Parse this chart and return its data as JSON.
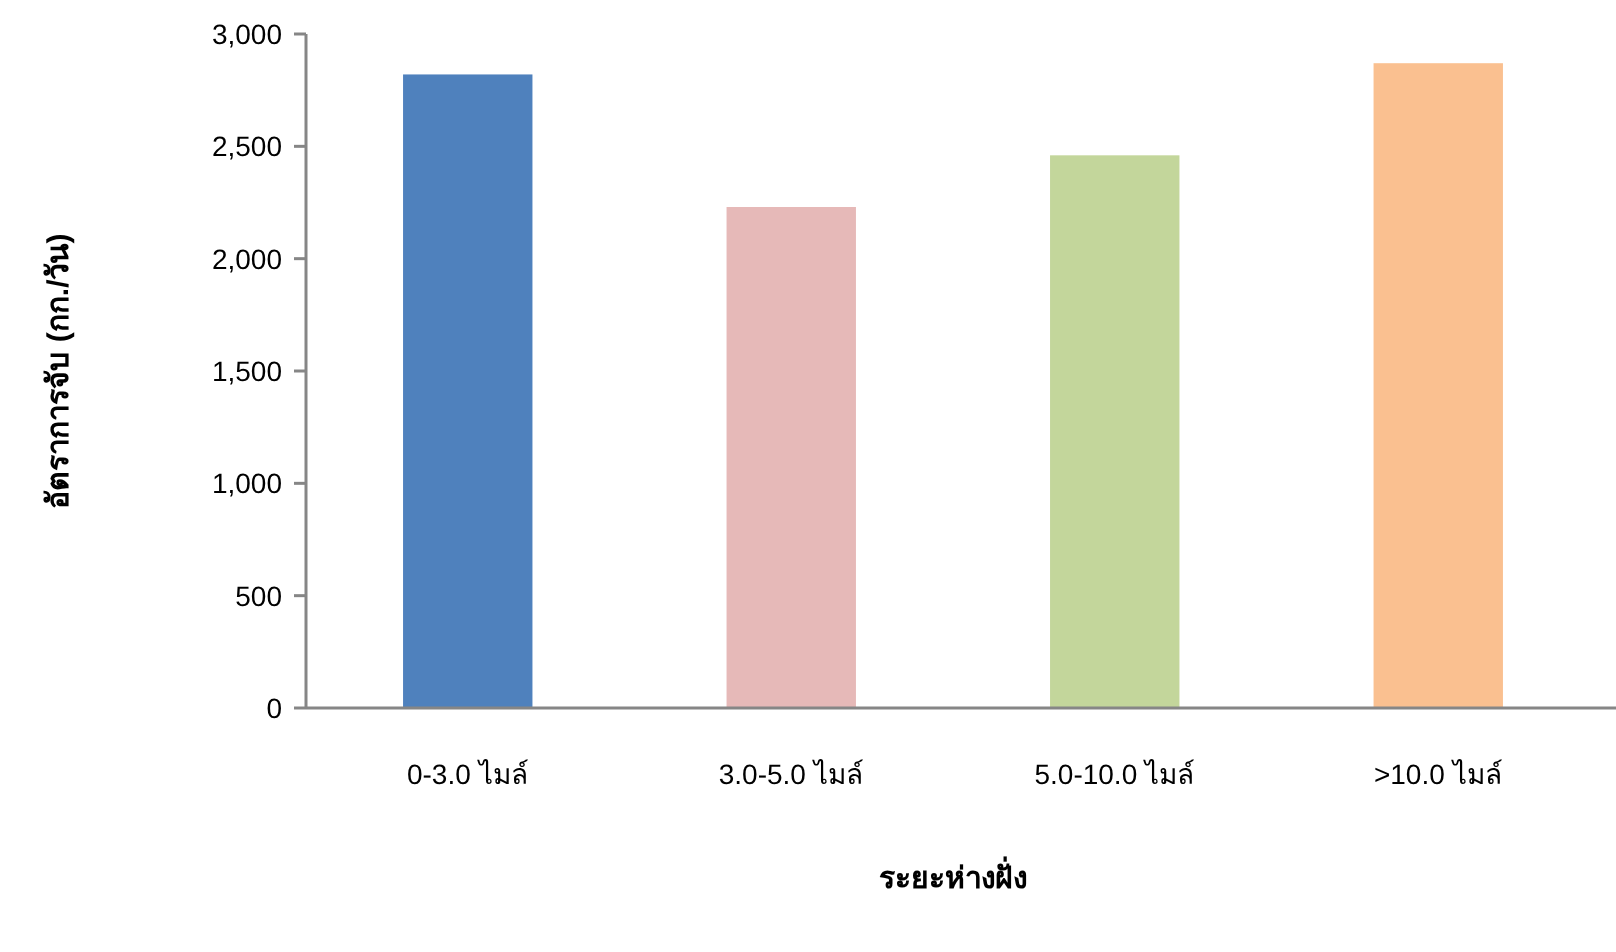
{
  "chart_data": {
    "type": "bar",
    "xlabel": "ระยะห่างฝั่ง",
    "ylabel": "อัตราการจับ (กก./วัน)",
    "categories": [
      "0-3.0 ไมล์",
      "3.0-5.0 ไมล์",
      "5.0-10.0 ไมล์",
      ">10.0 ไมล์"
    ],
    "values": [
      2820,
      2230,
      2460,
      2870
    ],
    "colors": [
      "#4f81bd",
      "#e6b9b8",
      "#c3d69b",
      "#fac090"
    ],
    "ylim": [
      0,
      3000
    ],
    "yticks": [
      0,
      500,
      {
        "value": 1000,
        "label": "1,000"
      },
      {
        "value": 1500,
        "label": "1,500"
      },
      {
        "value": 2000,
        "label": "2,000"
      },
      {
        "value": 2500,
        "label": "2,500"
      },
      {
        "value": 3000,
        "label": "3,000"
      }
    ],
    "grid": false
  }
}
